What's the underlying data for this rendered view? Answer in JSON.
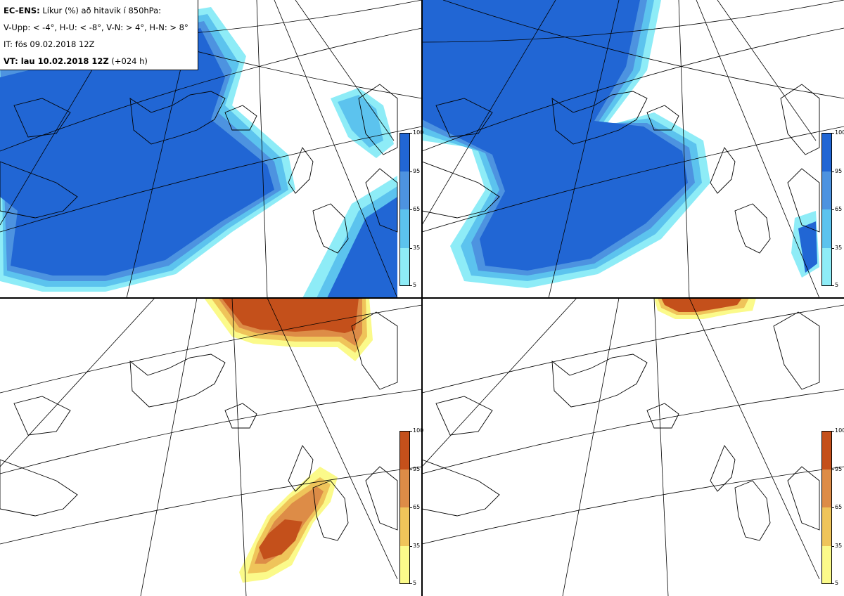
{
  "header": {
    "model_label": "EC-ENS:",
    "title_rest": "Líkur (%) að hitavik í 850hPa:",
    "thresholds": "V-Upp: < -4°, H-U: < -8°, V-N: > 4°, H-N: > 8°",
    "init_time": "IT: fös 09.02.2018 12Z",
    "valid_label": "VT: lau 10.02.2018 12Z",
    "lead_time": "(+024 h)"
  },
  "colorbars": [
    {
      "scheme": "cold",
      "ticks": [
        "100",
        "95",
        "65",
        "35",
        "5"
      ],
      "colors": [
        "#2166d4",
        "#4d93e0",
        "#5cc3ee",
        "#8eecf7"
      ]
    },
    {
      "scheme": "warm",
      "ticks": [
        "100",
        "95",
        "65",
        "35",
        "5"
      ],
      "colors": [
        "#c4501b",
        "#dd8c47",
        "#efc45a",
        "#fbfa8a"
      ]
    }
  ],
  "panels": [
    {
      "id": "V-Upp",
      "scheme": "cold",
      "has_info_box": true
    },
    {
      "id": "H-U",
      "scheme": "cold",
      "has_info_box": false
    },
    {
      "id": "V-N",
      "scheme": "warm",
      "has_info_box": false
    },
    {
      "id": "H-N",
      "scheme": "warm",
      "has_info_box": false
    }
  ]
}
